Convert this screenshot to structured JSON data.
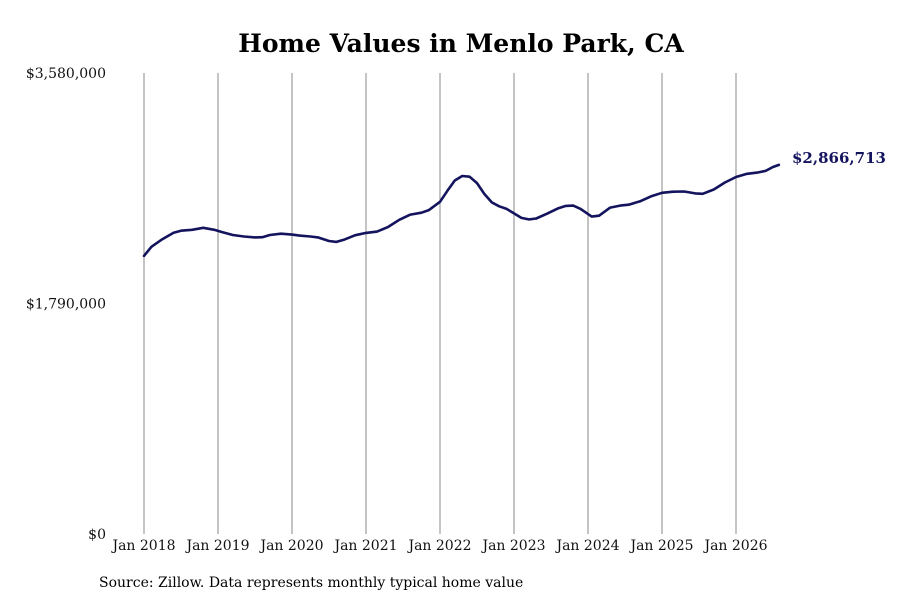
{
  "chart_data": {
    "type": "line",
    "title": "Home Values in Menlo Park, CA",
    "xlabel": "",
    "ylabel": "",
    "y_tick_labels": [
      "$0",
      "$1,790,000",
      "$3,580,000"
    ],
    "y_ticks": [
      0,
      1790000,
      3580000
    ],
    "ylim": [
      0,
      3580000
    ],
    "x_tick_labels": [
      "Jan 2018",
      "Jan 2019",
      "Jan 2020",
      "Jan 2021",
      "Jan 2022",
      "Jan 2023",
      "Jan 2024",
      "Jan 2025",
      "Jan 2026"
    ],
    "x_ticks": [
      2018,
      2019,
      2020,
      2021,
      2022,
      2023,
      2024,
      2025,
      2026
    ],
    "xlim": [
      2018,
      2026.6
    ],
    "grid": "vertical",
    "end_label": "$2,866,713",
    "series": [
      {
        "color": "#14145e",
        "points": [
          [
            2018.0,
            2160000
          ],
          [
            2018.1,
            2230000
          ],
          [
            2018.25,
            2290000
          ],
          [
            2018.4,
            2340000
          ],
          [
            2018.5,
            2355000
          ],
          [
            2018.65,
            2362000
          ],
          [
            2018.8,
            2378000
          ],
          [
            2018.95,
            2362000
          ],
          [
            2019.05,
            2345000
          ],
          [
            2019.2,
            2322000
          ],
          [
            2019.35,
            2310000
          ],
          [
            2019.5,
            2303000
          ],
          [
            2019.6,
            2305000
          ],
          [
            2019.7,
            2322000
          ],
          [
            2019.85,
            2332000
          ],
          [
            2020.0,
            2325000
          ],
          [
            2020.1,
            2317000
          ],
          [
            2020.25,
            2310000
          ],
          [
            2020.35,
            2303000
          ],
          [
            2020.5,
            2275000
          ],
          [
            2020.6,
            2268000
          ],
          [
            2020.7,
            2285000
          ],
          [
            2020.85,
            2320000
          ],
          [
            2021.0,
            2338000
          ],
          [
            2021.15,
            2348000
          ],
          [
            2021.3,
            2385000
          ],
          [
            2021.45,
            2440000
          ],
          [
            2021.6,
            2480000
          ],
          [
            2021.75,
            2495000
          ],
          [
            2021.85,
            2515000
          ],
          [
            2022.0,
            2580000
          ],
          [
            2022.1,
            2665000
          ],
          [
            2022.2,
            2745000
          ],
          [
            2022.3,
            2780000
          ],
          [
            2022.4,
            2775000
          ],
          [
            2022.5,
            2725000
          ],
          [
            2022.6,
            2640000
          ],
          [
            2022.7,
            2575000
          ],
          [
            2022.8,
            2545000
          ],
          [
            2022.9,
            2525000
          ],
          [
            2023.0,
            2490000
          ],
          [
            2023.1,
            2455000
          ],
          [
            2023.2,
            2443000
          ],
          [
            2023.3,
            2450000
          ],
          [
            2023.45,
            2488000
          ],
          [
            2023.6,
            2530000
          ],
          [
            2023.7,
            2548000
          ],
          [
            2023.8,
            2550000
          ],
          [
            2023.9,
            2525000
          ],
          [
            2024.05,
            2465000
          ],
          [
            2024.15,
            2472000
          ],
          [
            2024.3,
            2535000
          ],
          [
            2024.45,
            2552000
          ],
          [
            2024.55,
            2557000
          ],
          [
            2024.7,
            2583000
          ],
          [
            2024.85,
            2622000
          ],
          [
            2025.0,
            2650000
          ],
          [
            2025.15,
            2658000
          ],
          [
            2025.3,
            2660000
          ],
          [
            2025.45,
            2645000
          ],
          [
            2025.55,
            2642000
          ],
          [
            2025.7,
            2675000
          ],
          [
            2025.85,
            2730000
          ],
          [
            2026.0,
            2772000
          ],
          [
            2026.15,
            2797000
          ],
          [
            2026.3,
            2808000
          ],
          [
            2026.4,
            2820000
          ],
          [
            2026.5,
            2850000
          ],
          [
            2026.58,
            2866713
          ]
        ]
      }
    ]
  },
  "source_note": "Source: Zillow. Data represents monthly typical home value"
}
